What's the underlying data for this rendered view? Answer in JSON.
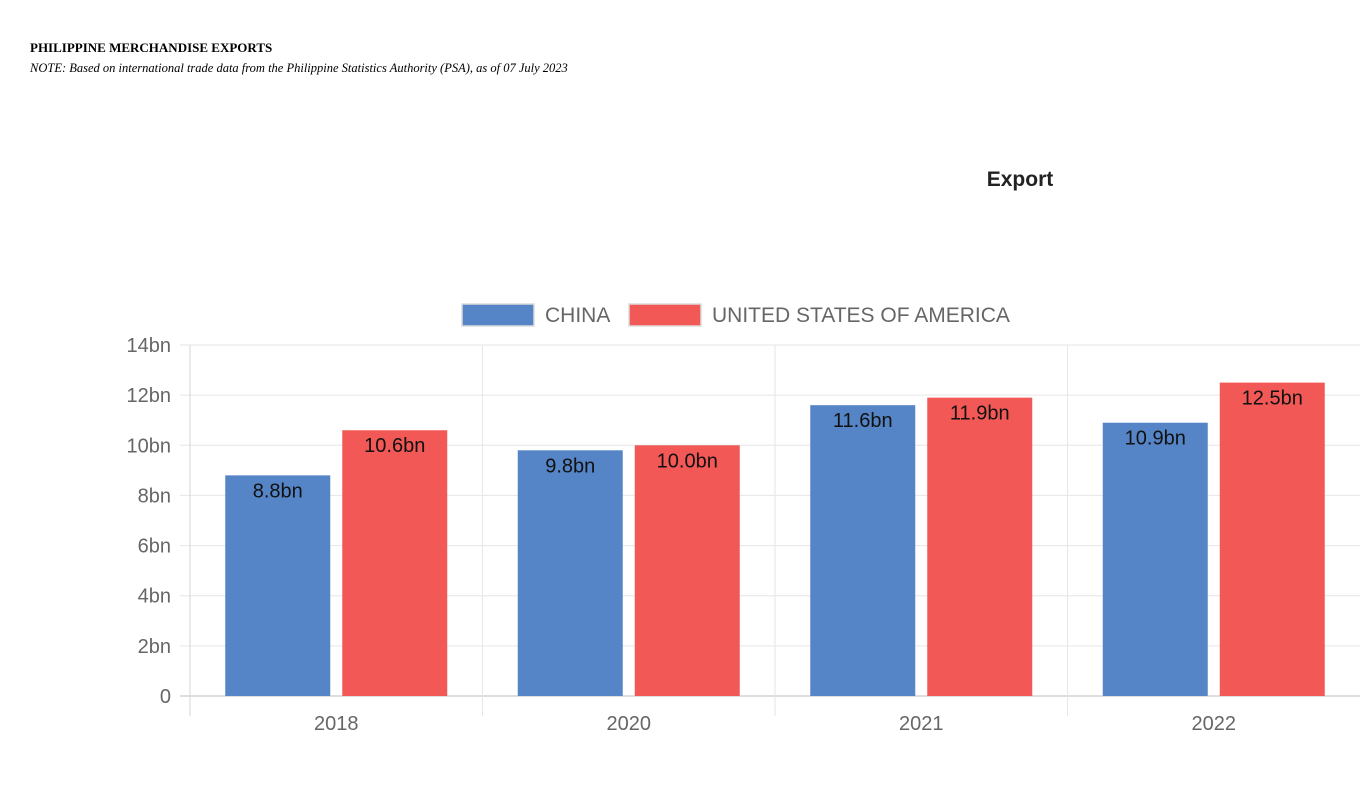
{
  "page": {
    "heading": "PHILIPPINE MERCHANDISE EXPORTS",
    "note": "NOTE:  Based on international trade data from the Philippine Statistics Authority (PSA), as of 07 July 2023"
  },
  "chart_data": {
    "type": "bar",
    "title": "Export",
    "categories": [
      "2018",
      "2020",
      "2021",
      "2022"
    ],
    "series": [
      {
        "name": "CHINA",
        "color": "#5585c6",
        "values": [
          8.8,
          9.8,
          11.6,
          10.9
        ],
        "labels": [
          "8.8bn",
          "9.8bn",
          "11.6bn",
          "10.9bn"
        ]
      },
      {
        "name": "UNITED STATES OF AMERICA",
        "color": "#f15856",
        "values": [
          10.6,
          10.0,
          11.9,
          12.5
        ],
        "labels": [
          "10.6bn",
          "10.0bn",
          "11.9bn",
          "12.5bn"
        ]
      }
    ],
    "ylim": [
      0,
      14
    ],
    "yticks": [
      0,
      2,
      4,
      6,
      8,
      10,
      12,
      14
    ],
    "ytick_labels": [
      "0",
      "2bn",
      "4bn",
      "6bn",
      "8bn",
      "10bn",
      "12bn",
      "14bn"
    ],
    "xlabel": "",
    "ylabel": "",
    "unit": "billion",
    "legend_position": "top",
    "grid": true
  }
}
